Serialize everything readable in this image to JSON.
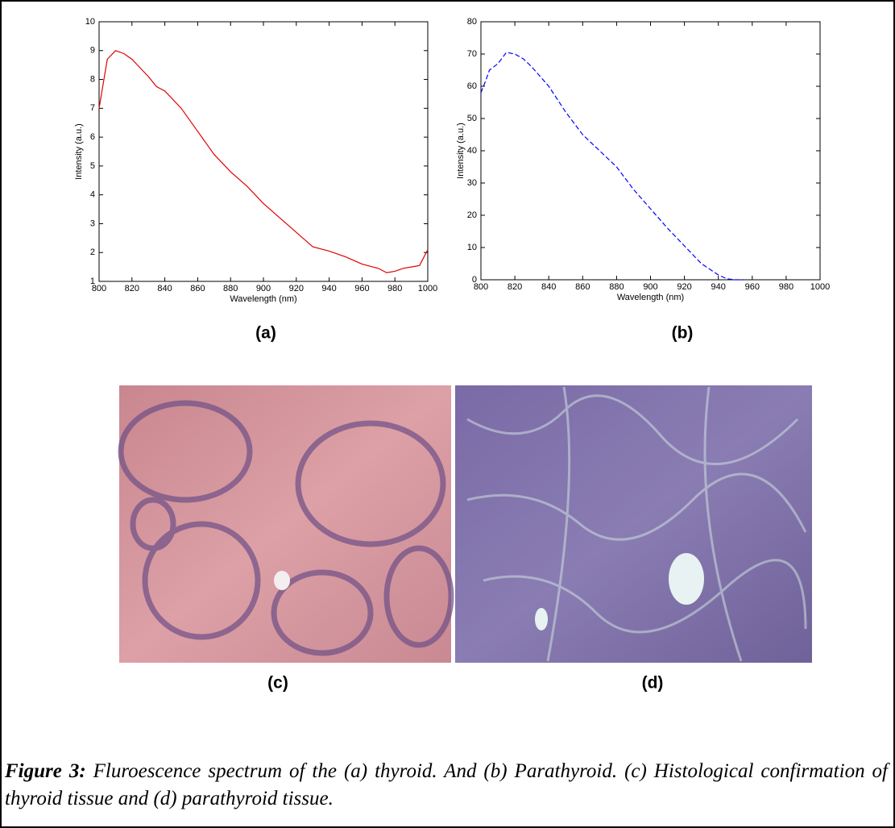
{
  "chart_data": [
    {
      "type": "line",
      "xlabel": "Wavelength (nm)",
      "ylabel": "Intensity (a.u.)",
      "x": [
        800,
        805,
        810,
        815,
        820,
        825,
        830,
        835,
        840,
        850,
        860,
        870,
        880,
        890,
        900,
        910,
        920,
        930,
        940,
        950,
        960,
        970,
        975,
        980,
        985,
        990,
        995,
        1000
      ],
      "values": [
        7.0,
        8.7,
        9.0,
        8.9,
        8.7,
        8.4,
        8.1,
        7.75,
        7.6,
        7.0,
        6.2,
        5.4,
        4.8,
        4.3,
        3.7,
        3.2,
        2.7,
        2.2,
        2.05,
        1.85,
        1.6,
        1.45,
        1.3,
        1.35,
        1.45,
        1.5,
        1.55,
        2.1
      ],
      "color": "#e00000",
      "linestyle": "solid",
      "xlim": [
        800,
        1000
      ],
      "xticks": [
        800,
        820,
        840,
        860,
        880,
        900,
        920,
        940,
        960,
        980,
        1000
      ],
      "ylim": [
        1,
        10
      ],
      "yticks": [
        1,
        2,
        3,
        4,
        5,
        6,
        7,
        8,
        9,
        10
      ]
    },
    {
      "type": "line",
      "xlabel": "Wavelength (nm)",
      "ylabel": "Intensity (a.u.)",
      "x": [
        800,
        803,
        805,
        810,
        815,
        820,
        825,
        830,
        840,
        850,
        860,
        870,
        880,
        890,
        900,
        910,
        920,
        930,
        940,
        945,
        950,
        955
      ],
      "values": [
        58,
        62,
        65,
        67,
        70.5,
        70,
        68.5,
        66,
        60,
        52,
        45,
        40,
        35,
        28,
        22,
        16,
        10.5,
        5,
        1.5,
        0.3,
        0,
        0
      ],
      "color": "#0000ff",
      "linestyle": "dashed",
      "xlim": [
        800,
        1000
      ],
      "xticks": [
        800,
        820,
        840,
        860,
        880,
        900,
        920,
        940,
        960,
        980,
        1000
      ],
      "ylim": [
        0,
        80
      ],
      "yticks": [
        0,
        10,
        20,
        30,
        40,
        50,
        60,
        70,
        80
      ]
    }
  ],
  "panel_labels": [
    "(a)",
    "(b)",
    "(c)",
    "(d)"
  ],
  "caption": {
    "label": "Figure 3:",
    "text": "Fluroescence spectrum of the (a) thyroid. And (b) Parathyroid. (c) Histological confirmation of thyroid tissue and (d) parathyroid tissue."
  }
}
